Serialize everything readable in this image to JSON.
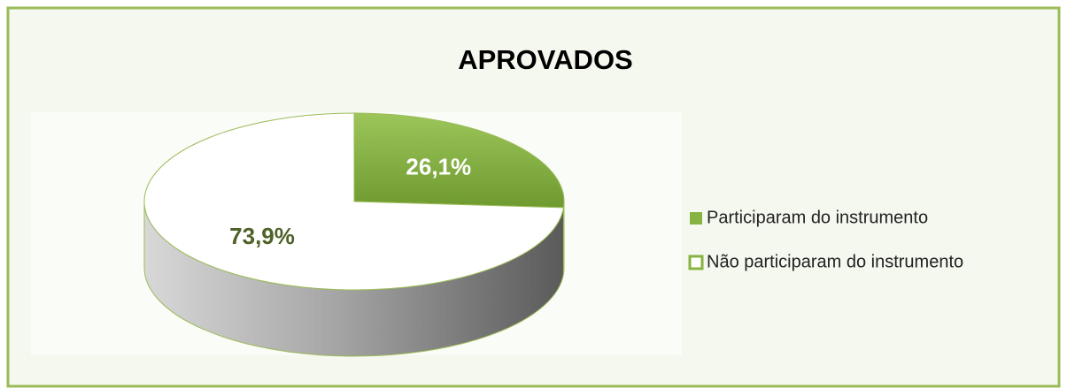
{
  "chart_data": {
    "type": "pie",
    "title": "APROVADOS",
    "categories": [
      "Participaram do instrumento",
      "Não participaram do instrumento"
    ],
    "values": [
      26.1,
      73.9
    ],
    "value_labels": [
      "26,1%",
      "73,9%"
    ],
    "colors": [
      "#86b342",
      "#ffffff"
    ],
    "legend": "right"
  }
}
